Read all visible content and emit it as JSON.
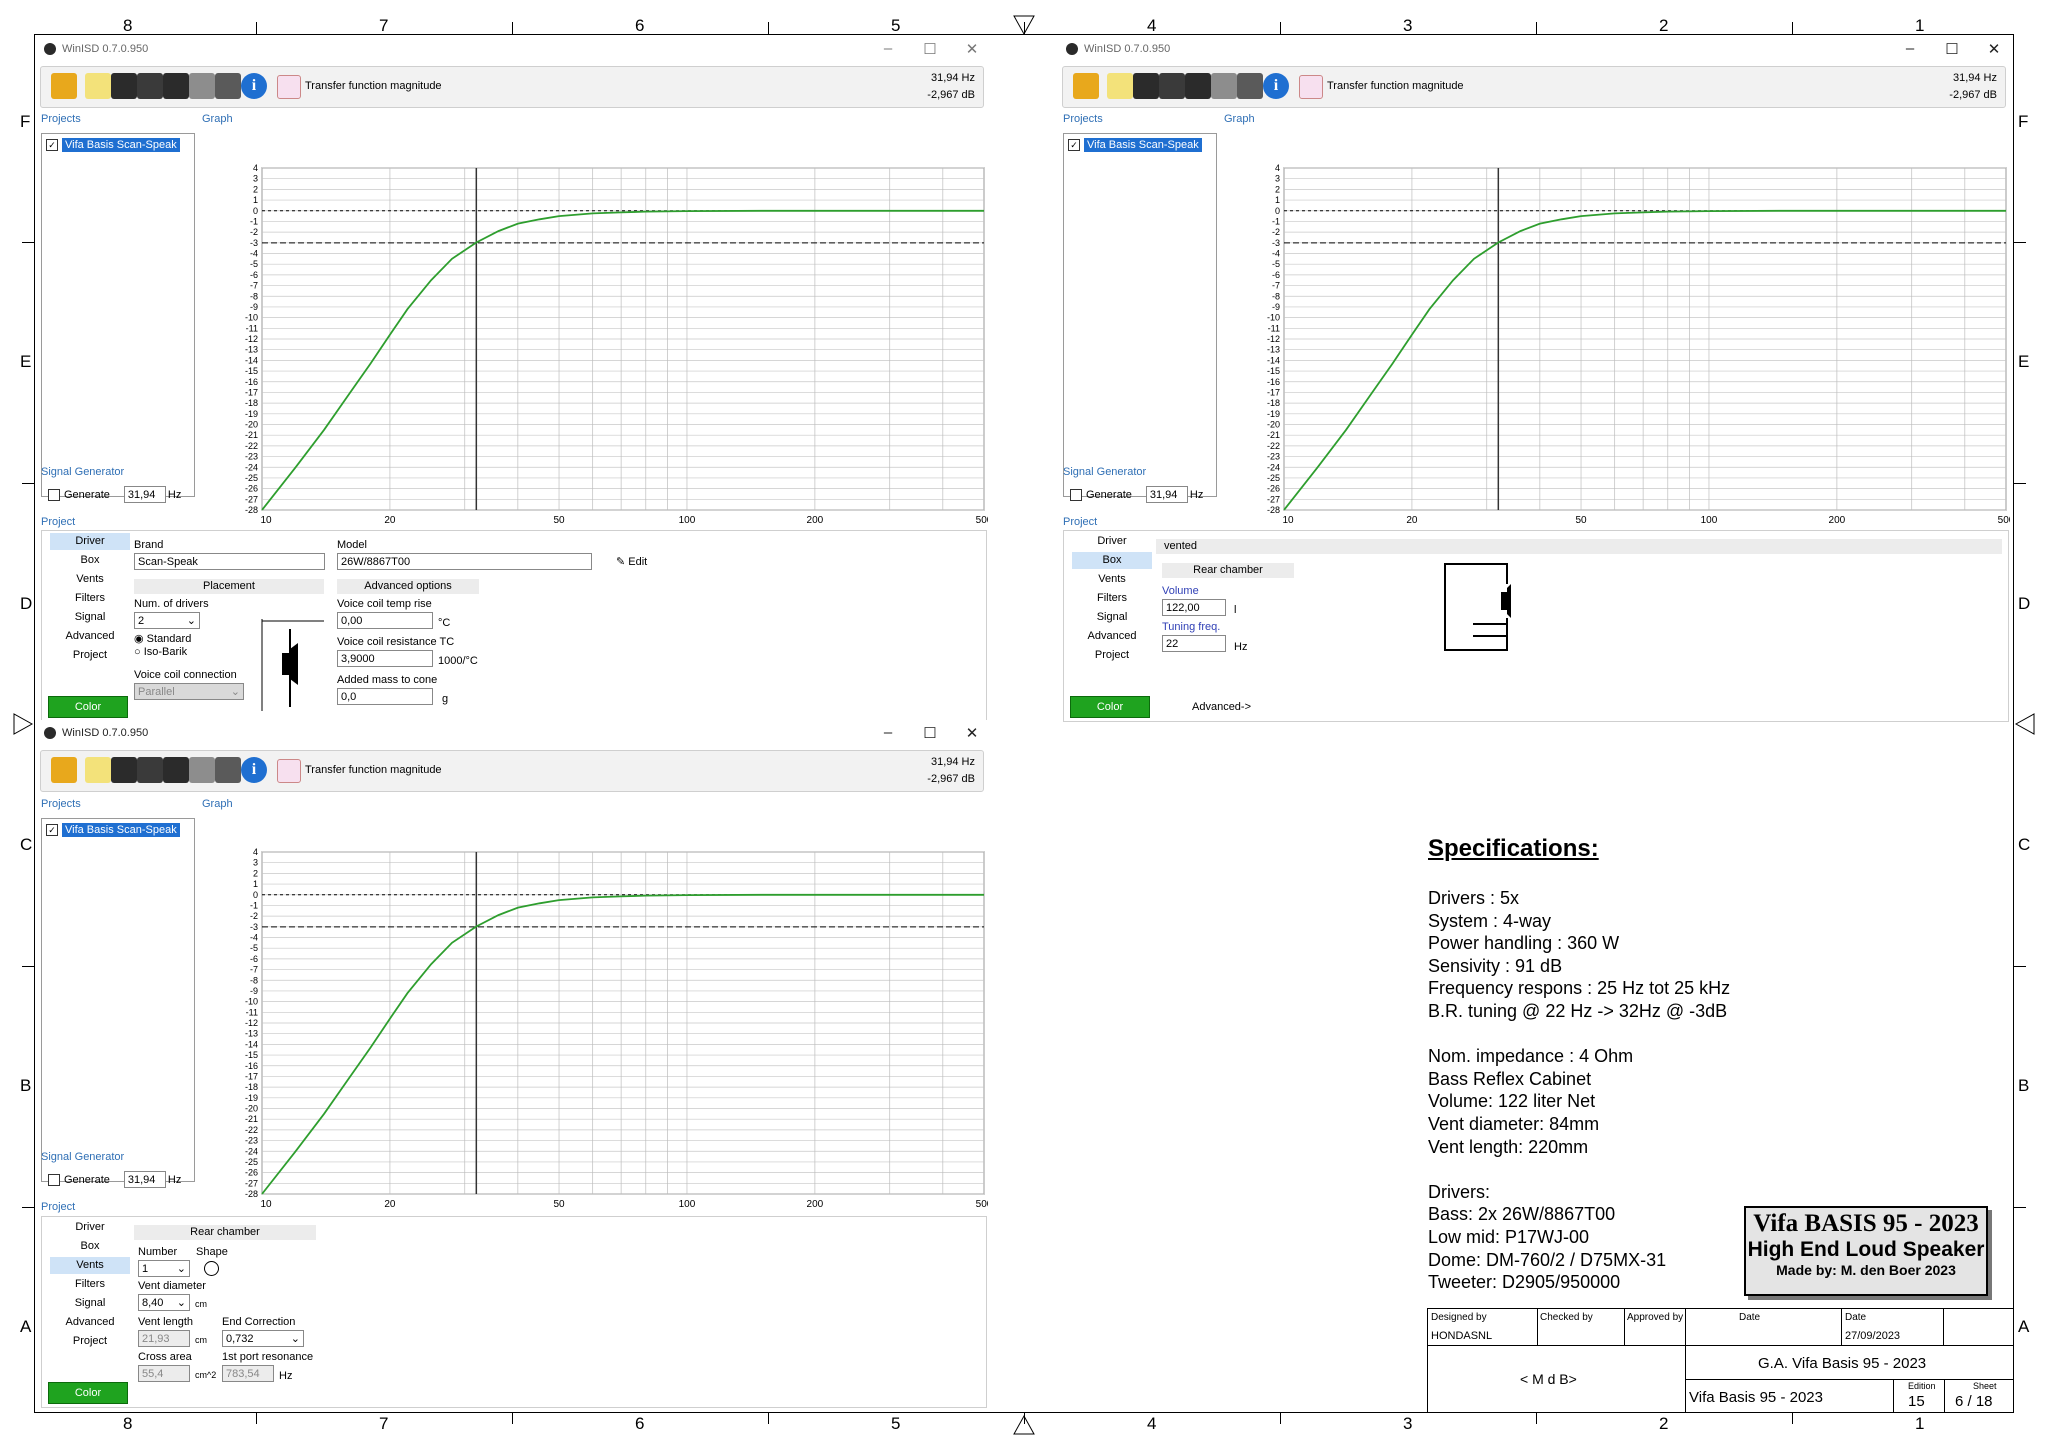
{
  "border": {
    "top_numbers": [
      "8",
      "7",
      "6",
      "5",
      "4",
      "3",
      "2",
      "1"
    ],
    "bottom_numbers": [
      "8",
      "7",
      "6",
      "5",
      "4",
      "3",
      "2",
      "1"
    ],
    "side_letters": [
      "F",
      "E",
      "D",
      "C",
      "B",
      "A"
    ]
  },
  "app": {
    "title": "WinISD 0.7.0.950",
    "toolbar_label": "Transfer function magnitude",
    "readout_hz": "31,94 Hz",
    "readout_db": "-2,967 dB",
    "projects_label": "Projects",
    "graph_label": "Graph",
    "project_name": "Vifa Basis Scan-Speak",
    "signal_generator_label": "Signal Generator",
    "generate_label": "Generate",
    "generate_value": "31,94",
    "generate_unit": "Hz",
    "project_label": "Project",
    "nav": [
      "Driver",
      "Box",
      "Vents",
      "Filters",
      "Signal",
      "Advanced",
      "Project"
    ],
    "color_label": "Color",
    "y_ticks": [
      "4",
      "3",
      "2",
      "1",
      "0",
      "-1",
      "-2",
      "-3",
      "-4",
      "-5",
      "-6",
      "-7",
      "-8",
      "-9",
      "-10",
      "-11",
      "-12",
      "-13",
      "-14",
      "-15",
      "-16",
      "-17",
      "-18",
      "-19",
      "-20",
      "-21",
      "-22",
      "-23",
      "-24",
      "-25",
      "-26",
      "-27",
      "-28"
    ],
    "x_ticks": [
      "10",
      "20",
      "50",
      "100",
      "200",
      "500"
    ],
    "curve_color": "#2e9e2e"
  },
  "chart_data": {
    "type": "line",
    "x_scale": "log",
    "xlim": [
      10,
      500
    ],
    "ylim": [
      -28,
      4
    ],
    "cursor_hz": 31.94,
    "x": [
      10,
      12,
      14,
      16,
      18,
      20,
      22,
      25,
      28,
      31.94,
      36,
      40,
      45,
      50,
      60,
      70,
      80,
      100,
      150,
      200,
      300,
      500
    ],
    "y": [
      -28,
      -24,
      -20.5,
      -17.2,
      -14.3,
      -11.6,
      -9.2,
      -6.5,
      -4.5,
      -2.967,
      -1.9,
      -1.2,
      -0.8,
      -0.5,
      -0.25,
      -0.15,
      -0.08,
      -0.03,
      0,
      0,
      0,
      0
    ]
  },
  "win1": {
    "brand_label": "Brand",
    "brand": "Scan-Speak",
    "model_label": "Model",
    "model": "26W/8867T00",
    "edit_label": "Edit",
    "placement_label": "Placement",
    "advanced_options_label": "Advanced options",
    "num_drivers_label": "Num. of drivers",
    "num_drivers": "2",
    "standard_label": "Standard",
    "isobarik_label": "Iso-Barik",
    "vc_connection_label": "Voice coil connection",
    "vc_connection": "Parallel",
    "vc_temp_label": "Voice coil temp rise",
    "vc_temp": "0,00",
    "vc_temp_unit": "°C",
    "vc_res_label": "Voice coil resistance TC",
    "vc_res": "3,9000",
    "vc_res_unit": "1000/°C",
    "added_mass_label": "Added mass to cone",
    "added_mass": "0,0",
    "added_mass_unit": "g"
  },
  "win2": {
    "box_type": "vented",
    "rear_chamber_label": "Rear chamber",
    "volume_label": "Volume",
    "volume": "122,00",
    "volume_unit": "l",
    "tuning_label": "Tuning freq.",
    "tuning": "22",
    "tuning_unit": "Hz",
    "advanced_link": "Advanced->"
  },
  "win3": {
    "rear_chamber_label": "Rear chamber",
    "number_label": "Number",
    "number": "1",
    "shape_label": "Shape",
    "vent_diameter_label": "Vent diameter",
    "vent_diameter": "8,40",
    "vent_diameter_unit": "cm",
    "vent_length_label": "Vent length",
    "vent_length": "21,93",
    "vent_length_unit": "cm",
    "end_correction_label": "End Correction",
    "end_correction": "0,732",
    "cross_area_label": "Cross area",
    "cross_area": "55,4",
    "cross_area_unit": "cm^2",
    "port_res_label": "1st port resonance",
    "port_res": "783,54",
    "port_res_unit": "Hz"
  },
  "specs": {
    "heading": "Specifications:",
    "group1": [
      "Drivers : 5x",
      "System : 4-way",
      "Power handling : 360 W",
      "Sensivity : 91 dB",
      "Frequency respons : 25 Hz tot 25 kHz",
      "B.R. tuning @ 22 Hz -> 32Hz @ -3dB"
    ],
    "group2": [
      "Nom. impedance : 4 Ohm",
      "Bass Reflex Cabinet",
      "Volume: 122 liter Net",
      "Vent diameter: 84mm",
      "Vent length: 220mm"
    ],
    "group3": [
      "Drivers:",
      "Bass: 2x 26W/8867T00",
      "Low mid: P17WJ-00",
      "Dome: DM-760/2 / D75MX-31",
      "Tweeter: D2905/950000"
    ]
  },
  "stamp": {
    "line1": "Vifa BASIS 95 - 2023",
    "line2": "High End Loud Speaker",
    "line3": "Made by: M. den Boer 2023"
  },
  "title_block": {
    "designed_by_label": "Designed by",
    "designed_by": "HONDASNL",
    "checked_by_label": "Checked by",
    "approved_by_label": "Approved by",
    "date_label": "Date",
    "date_label2": "Date",
    "date": "27/09/2023",
    "org": "< M d B>",
    "doc_title": "G.A. Vifa Basis 95 - 2023",
    "doc_subtitle": "Vifa Basis 95 - 2023",
    "edition_label": "Edition",
    "edition": "15",
    "sheet_label": "Sheet",
    "sheet": "6 / 18"
  }
}
